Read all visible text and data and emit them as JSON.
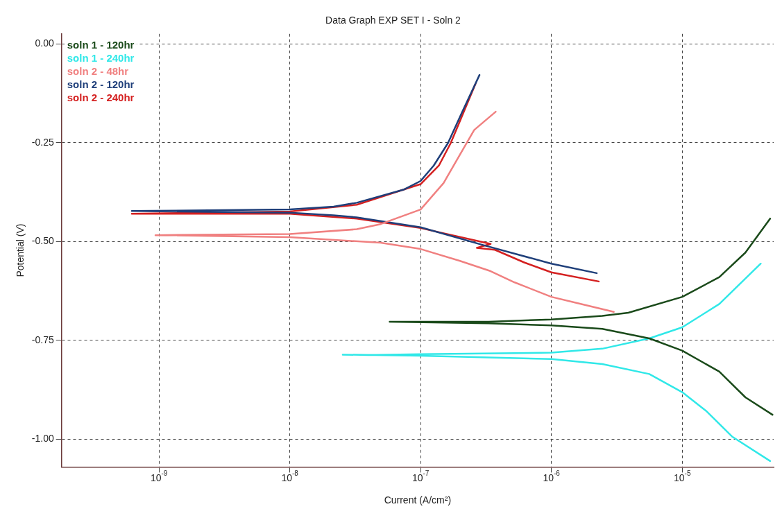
{
  "chart_data": {
    "type": "line",
    "title": "Data Graph EXP SET I - Soln 2",
    "xlabel": "Current (A/cm²)",
    "ylabel": "Potential (V)",
    "log": "x",
    "grid": true,
    "legend": "top left",
    "marker": "none",
    "line_style": "solid",
    "xlim": [
      1.8e-10,
      5e-05
    ],
    "ylim": [
      -1.07,
      0.025
    ],
    "xticks": [
      {
        "value": 1e-09,
        "label": "10$^{-9}$"
      },
      {
        "value": 1e-08,
        "label": "10$^{-8}$"
      },
      {
        "value": 1e-07,
        "label": "10$^{-7}$"
      },
      {
        "value": 1e-06,
        "label": "10$^{-6}$"
      },
      {
        "value": 1e-05,
        "label": "10$^{-5}$"
      }
    ],
    "yticks": [
      {
        "value": 0,
        "label": "0.00"
      },
      {
        "value": -0.25,
        "label": "-0.25"
      },
      {
        "value": -0.5,
        "label": "-0.50"
      },
      {
        "value": -0.75,
        "label": "-0.75"
      },
      {
        "value": -1,
        "label": "-1.00"
      }
    ],
    "series": [
      {
        "name": "soln 1 - 120hr",
        "color": "#1a4a1a",
        "x": [
          4.9e-05,
          3.04e-05,
          1.92e-05,
          1e-05,
          5.6e-06,
          2.45e-06,
          1e-06,
          3.3e-07,
          5.8e-08,
          3.3e-07,
          1e-06,
          2.45e-06,
          3.87e-06,
          1e-05,
          1.92e-05,
          3.04e-05,
          4.7e-05
        ],
        "values": [
          -0.938,
          -0.894,
          -0.829,
          -0.776,
          -0.745,
          -0.721,
          -0.712,
          -0.707,
          -0.703,
          -0.703,
          -0.697,
          -0.688,
          -0.68,
          -0.64,
          -0.59,
          -0.528,
          -0.442
        ]
      },
      {
        "name": "soln 1 - 240hr",
        "color": "#30e8e8",
        "x": [
          4.7e-05,
          2.4e-05,
          1.52e-05,
          1e-05,
          5.6e-06,
          2.45e-06,
          1e-06,
          1e-07,
          2.54e-08,
          4e-08,
          1e-07,
          1e-06,
          2.45e-06,
          5.6e-06,
          1e-05,
          1.92e-05,
          3.98e-05
        ],
        "values": [
          -1.055,
          -0.993,
          -0.928,
          -0.881,
          -0.835,
          -0.81,
          -0.797,
          -0.789,
          -0.786,
          -0.787,
          -0.785,
          -0.781,
          -0.771,
          -0.745,
          -0.717,
          -0.658,
          -0.556
        ]
      },
      {
        "name": "soln 2 - 48hr",
        "color": "#f08080",
        "x": [
          3e-06,
          1.55e-06,
          1e-06,
          5.2e-07,
          3.43e-07,
          2e-07,
          1e-07,
          4.94e-08,
          1e-08,
          9.4e-10,
          1e-08,
          3.25e-08,
          4.94e-08,
          1e-07,
          1.5e-07,
          2e-07,
          2.57e-07,
          3.75e-07
        ],
        "values": [
          -0.678,
          -0.655,
          -0.64,
          -0.603,
          -0.575,
          -0.549,
          -0.519,
          -0.503,
          -0.489,
          -0.484,
          -0.481,
          -0.469,
          -0.456,
          -0.419,
          -0.352,
          -0.28,
          -0.218,
          -0.172
        ]
      },
      {
        "name": "soln 2 - 120hr",
        "color": "#1f3f7a",
        "x": [
          2.22e-06,
          1e-06,
          3e-07,
          1e-07,
          3.25e-08,
          2.16e-08,
          1e-08,
          6.2e-10,
          1e-08,
          2.16e-08,
          3.25e-08,
          7.4e-08,
          1e-07,
          1.26e-07,
          1.62e-07,
          2.07e-07,
          2.82e-07
        ],
        "values": [
          -0.58,
          -0.556,
          -0.509,
          -0.464,
          -0.439,
          -0.434,
          -0.427,
          -0.423,
          -0.419,
          -0.412,
          -0.402,
          -0.369,
          -0.347,
          -0.308,
          -0.251,
          -0.174,
          -0.079
        ]
      },
      {
        "name": "soln 2 - 240hr",
        "color": "#d42020",
        "x": [
          2.3e-06,
          1e-06,
          6.2e-07,
          3.7e-07,
          2.69e-07,
          3.43e-07,
          1e-07,
          3.25e-08,
          1e-08,
          6.2e-10,
          1e-08,
          3.25e-08,
          1e-07,
          1.38e-07,
          1.7e-07,
          2.63e-07
        ],
        "values": [
          -0.601,
          -0.578,
          -0.553,
          -0.521,
          -0.516,
          -0.506,
          -0.466,
          -0.442,
          -0.43,
          -0.43,
          -0.424,
          -0.407,
          -0.355,
          -0.308,
          -0.251,
          -0.101
        ]
      }
    ]
  }
}
